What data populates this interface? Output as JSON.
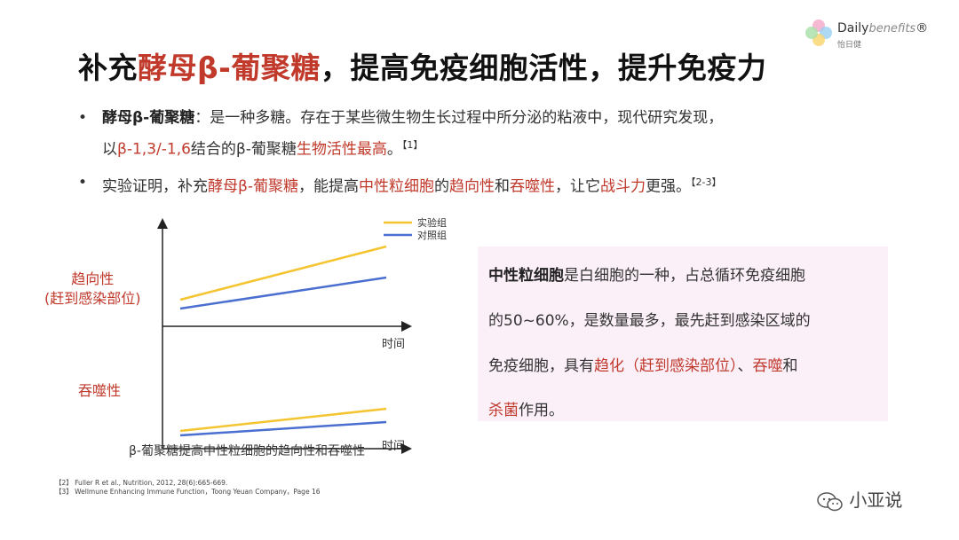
{
  "logo": {
    "brand_prefix": "Daily",
    "brand_suffix": "benefits",
    "sub": "怡日健"
  },
  "title": {
    "part1": "补充",
    "part2": "酵母β-葡聚糖",
    "part3": "，提高免疫细胞活性，提升免疫力"
  },
  "bullets": {
    "b1": {
      "term": "酵母β-葡聚糖",
      "text1": "：是一种多糖。存在于某些微生物生长过程中所分泌的粘液中，现代研究发现，",
      "l2a": "以",
      "l2b": "β-1,3/-1,6",
      "l2c": "结合的β-葡聚糖",
      "l2d": "生物活性最高",
      "l2e": "。",
      "ref": "【1】"
    },
    "b2": {
      "a": "实验证明，补充",
      "b": "酵母β-葡聚糖",
      "c": "，能提高",
      "d": "中性粒细胞",
      "e": "的",
      "f": "趋向性",
      "g": "和",
      "h": "吞噬性",
      "i": "，让它",
      "j": "战斗力",
      "k": "更强。",
      "ref": "【2-3】"
    }
  },
  "chart_data": {
    "type": "line",
    "legend": [
      "实验组",
      "对照组"
    ],
    "legend_placement": "top-right",
    "colors": {
      "experiment": "#f5c431",
      "control": "#4a6fd0",
      "axis": "#222222"
    },
    "panels": [
      {
        "ylabel_line1": "趋向性",
        "ylabel_line2": "(赶到感染部位)",
        "xlabel": "时间",
        "series": [
          {
            "name": "实验组",
            "values": [
              0.3,
              0.9
            ]
          },
          {
            "name": "对照组",
            "values": [
              0.2,
              0.55
            ]
          }
        ]
      },
      {
        "ylabel_line1": "吞噬性",
        "ylabel_line2": "",
        "xlabel": "时间",
        "series": [
          {
            "name": "实验组",
            "values": [
              0.2,
              0.45
            ]
          },
          {
            "name": "对照组",
            "values": [
              0.15,
              0.3
            ]
          }
        ]
      }
    ],
    "caption": "β-葡聚糖提高中性粒细胞的趋向性和吞噬性"
  },
  "info": {
    "l1a": "中性粒细胞",
    "l1b": "是白细胞的一种，占总循环免疫细胞",
    "l2": "的50~60%，是数量最多，最先赶到感染区域的",
    "l3a": "免疫细胞，具有",
    "l3b": "趋化（赶到感染部位）",
    "l3c": "、",
    "l3d": "吞噬",
    "l3e": "和",
    "l4a": "杀菌",
    "l4b": "作用。"
  },
  "refs": [
    "【2】 Fuller R et al., Nutrition, 2012, 28(6):665-669.",
    "【3】 Wellmune Enhancing Immune Function，Toong Yeuan Company，Page 16"
  ],
  "watermark": "小亚说"
}
